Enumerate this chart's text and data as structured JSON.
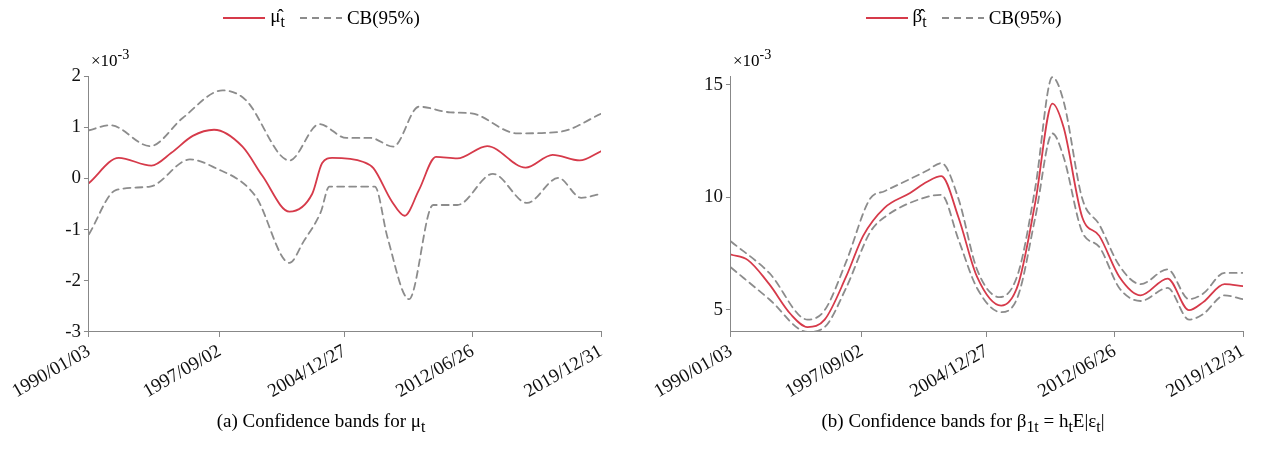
{
  "chart_data": [
    {
      "type": "line",
      "title": "(a) Confidence bands for μ$_{t}$",
      "annotations": [
        "×10$^{-3}$"
      ],
      "legend": "top",
      "grid": false,
      "xlim": [
        "1990-01-03",
        "2019-12-31"
      ],
      "xticks": [
        {
          "value": "1990-01-03",
          "label": "1990/01/03"
        },
        {
          "value": "1997-09-02",
          "label": "1997/09/02"
        },
        {
          "value": "2004-12-27",
          "label": "2004/12/27"
        },
        {
          "value": "2012-06-26",
          "label": "2012/06/26"
        },
        {
          "value": "2019-12-31",
          "label": "2019/12/31"
        }
      ],
      "ylim": [
        -3,
        2
      ],
      "yticks": [
        -3,
        -2,
        -1,
        0,
        1,
        2
      ],
      "series": [
        {
          "name": "μ̂$_{t}$",
          "color": "#d63a4a",
          "line_style": "solid",
          "x": [
            "1990-01-03",
            "1991-10",
            "1993-09",
            "1994-11",
            "1996-02",
            "1997-05",
            "1999-01",
            "2000-03",
            "2001-10",
            "2003-02",
            "2003-09",
            "2004-04",
            "2006-02",
            "2006-09",
            "2007-10",
            "2008-07",
            "2009-05",
            "2010-05",
            "2011-08",
            "2013-05",
            "2015-08",
            "2017-03",
            "2018-10",
            "2019-12-31"
          ],
          "values": [
            -0.09,
            0.4,
            0.25,
            0.5,
            0.83,
            0.95,
            0.62,
            0.05,
            -0.65,
            -0.3,
            0.3,
            0.4,
            0.32,
            0.2,
            -0.45,
            -0.73,
            -0.23,
            0.42,
            0.39,
            0.63,
            0.21,
            0.46,
            0.35,
            0.53
          ]
        },
        {
          "name": "CB(95%)",
          "color": "#8c8c8c",
          "line_style": "dashed",
          "x": [
            "1990-01-03",
            "1991-04",
            "1993-08",
            "1995-07",
            "1997-11",
            "1999-03",
            "2001-10",
            "2003-07",
            "2005-02",
            "2006-07",
            "2007-11",
            "2009-05",
            "2011-03",
            "2012-06",
            "2015-02",
            "2017-08",
            "2019-12-31"
          ],
          "values": [
            0.94,
            1.04,
            0.63,
            1.18,
            1.72,
            1.54,
            0.35,
            1.06,
            0.79,
            0.79,
            0.62,
            1.4,
            1.29,
            1.27,
            0.88,
            0.91,
            1.26
          ]
        },
        {
          "color": "#8c8c8c",
          "line_style": "dashed",
          "x": [
            "1990-01-03",
            "1991-08",
            "1993-08",
            "1995-12",
            "1997-04",
            "1999-10",
            "2001-10",
            "2002-08",
            "2003-08",
            "2004-02",
            "2006-10",
            "2007-07",
            "2008-10",
            "2010-03",
            "2011-08",
            "2013-09",
            "2015-09",
            "2017-07",
            "2018-11",
            "2019-12-31"
          ],
          "values": [
            -1.09,
            -0.23,
            -0.16,
            0.37,
            0.23,
            -0.34,
            -1.65,
            -1.23,
            -0.66,
            -0.16,
            -0.16,
            -1.16,
            -2.36,
            -0.52,
            -0.52,
            0.09,
            -0.48,
            0.01,
            -0.38,
            -0.3
          ]
        }
      ]
    },
    {
      "type": "line",
      "title": "(b) Confidence bands for β$_{1t}$ = h$_{t}$E|ε$_{t}$|",
      "annotations": [
        "×10$^{-3}$"
      ],
      "legend": "top",
      "grid": false,
      "xlim": [
        "1990-01-03",
        "2019-12-31"
      ],
      "xticks": [
        {
          "value": "1990-01-03",
          "label": "1990/01/03"
        },
        {
          "value": "1997-09-02",
          "label": "1997/09/02"
        },
        {
          "value": "2004-12-27",
          "label": "2004/12/27"
        },
        {
          "value": "2012-06-26",
          "label": "2012/06/26"
        },
        {
          "value": "2019-12-31",
          "label": "2019/12/31"
        }
      ],
      "ylim": [
        4,
        15.4
      ],
      "yticks": [
        5,
        10,
        15
      ],
      "series": [
        {
          "name": "β̂$_{t}$",
          "color": "#d63a4a",
          "line_style": "solid",
          "x": [
            "1990-01-03",
            "1991-01",
            "1992-04",
            "1993-07",
            "1994-07",
            "1995-07",
            "1996-10",
            "1997-10",
            "1999-01",
            "2000-07",
            "2001-07",
            "2002-05",
            "2003-05",
            "2004-06",
            "2005-11",
            "2006-11",
            "2007-11",
            "2008-11",
            "2009-07",
            "2010-08",
            "2011-08",
            "2012-10",
            "2014-01",
            "2015-08",
            "2016-11",
            "2017-09",
            "2018-12",
            "2019-12-31"
          ],
          "values": [
            7.45,
            7.2,
            6.13,
            4.8,
            4.22,
            4.55,
            6.46,
            8.28,
            9.53,
            10.19,
            10.69,
            10.94,
            9.11,
            6.46,
            5.17,
            6.13,
            9.78,
            14.17,
            13.09,
            9.11,
            8.28,
            6.46,
            5.63,
            6.38,
            4.97,
            5.33,
            6.13,
            6.04
          ]
        },
        {
          "name": "CB(95%)",
          "color": "#8c8c8c",
          "line_style": "dashed",
          "x": [
            "1990-01-03",
            "1992-04",
            "1994-07",
            "1995-07",
            "1996-10",
            "1998-03",
            "1999-01",
            "2001-07",
            "2002-05",
            "2003-05",
            "2004-06",
            "2005-10",
            "2006-11",
            "2007-11",
            "2008-11",
            "2009-07",
            "2010-08",
            "2011-08",
            "2012-10",
            "2014-01",
            "2015-08",
            "2016-11",
            "2017-09",
            "2018-12",
            "2019-12-31"
          ],
          "values": [
            8.03,
            6.63,
            4.55,
            4.97,
            7.12,
            9.94,
            10.27,
            11.19,
            11.52,
            9.94,
            6.79,
            5.55,
            6.63,
            10.44,
            15.35,
            14.25,
            9.94,
            8.78,
            6.96,
            6.13,
            6.79,
            5.46,
            5.71,
            6.63,
            6.63
          ]
        },
        {
          "color": "#8c8c8c",
          "line_style": "dashed",
          "x": [
            "1990-01-03",
            "1992-04",
            "1994-07",
            "1995-07",
            "1996-10",
            "1998-03",
            "1999-01",
            "2001-07",
            "2002-05",
            "2003-05",
            "2004-06",
            "2005-11",
            "2006-11",
            "2007-11",
            "2008-11",
            "2009-07",
            "2010-08",
            "2011-08",
            "2012-10",
            "2014-01",
            "2015-08",
            "2016-11",
            "2017-09",
            "2018-12",
            "2019-12-31"
          ],
          "values": [
            6.87,
            5.46,
            4.0,
            4.22,
            5.96,
            8.45,
            9.11,
            10.02,
            10.11,
            8.12,
            5.96,
            4.88,
            5.63,
            9.11,
            12.84,
            11.77,
            8.45,
            7.79,
            5.96,
            5.38,
            5.96,
            4.55,
            4.8,
            5.63,
            5.46
          ]
        }
      ]
    }
  ]
}
